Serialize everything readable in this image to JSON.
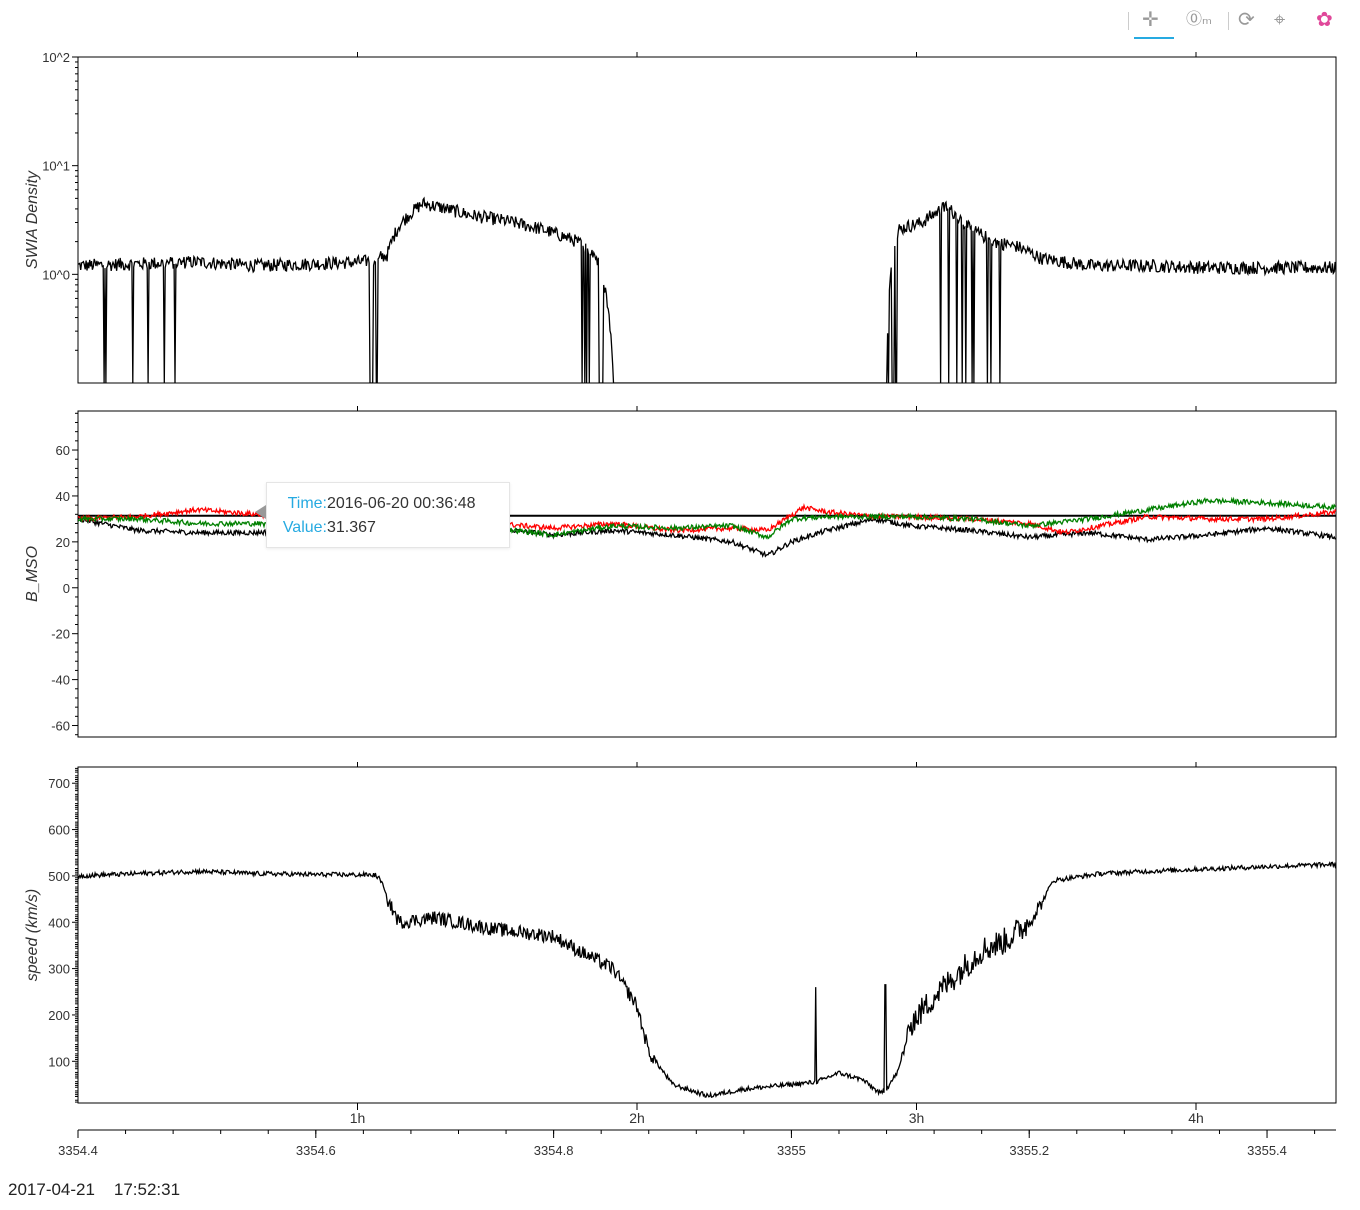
{
  "toolbar": {
    "tools": [
      {
        "name": "pan-tool",
        "glyph": "✛"
      },
      {
        "name": "wheel-zoom-tool",
        "glyph": "⓪ₘ"
      },
      {
        "name": "reset-tool",
        "glyph": "⟳"
      },
      {
        "name": "crosshair-tool",
        "glyph": "⌖"
      },
      {
        "name": "bokeh-logo",
        "glyph": "✿"
      }
    ]
  },
  "tooltip": {
    "time_label": "Time:",
    "time_value": "2016-06-20 00:36:48",
    "value_label": "Value:",
    "value_value": "31.367"
  },
  "footer": {
    "date": "2017-04-21",
    "time": "17:52:31"
  },
  "colors": {
    "line_black": "#000000",
    "line_red": "#ff0000",
    "line_green": "#008000",
    "tooltip_key": "#26aae1"
  },
  "chart_data": [
    {
      "type": "line",
      "panel": "density",
      "ylabel": "SWIA Density",
      "yscale": "log",
      "ylim": [
        0.1,
        100
      ],
      "yticks": [
        1,
        10,
        100
      ],
      "ytick_labels": [
        "10^0",
        "10^1",
        "10^2"
      ],
      "xlim": [
        3354.4,
        3355.458
      ],
      "series": [
        {
          "color": "#000000",
          "x": [
            3354.4,
            3354.45,
            3354.5,
            3354.55,
            3354.6,
            3354.64,
            3354.66,
            3354.67,
            3354.69,
            3354.71,
            3354.73,
            3354.76,
            3354.79,
            3354.82,
            3354.835,
            3354.85,
            3354.89,
            3354.93,
            3354.97,
            3355.01,
            3355.04,
            3355.07,
            3355.08,
            3355.09,
            3355.11,
            3355.13,
            3355.15,
            3355.17,
            3355.19,
            3355.21,
            3355.25,
            3355.3,
            3355.35,
            3355.4,
            3355.458
          ],
          "y": [
            1.2,
            1.25,
            1.3,
            1.2,
            1.25,
            1.3,
            1.5,
            2.8,
            4.5,
            4.0,
            3.5,
            3.1,
            2.6,
            2.0,
            1.5,
            0.1,
            0.1,
            0.1,
            0.1,
            0.1,
            0.1,
            0.1,
            0.1,
            2.6,
            3.0,
            4.2,
            2.6,
            2.0,
            1.8,
            1.4,
            1.2,
            1.2,
            1.15,
            1.15,
            1.15
          ]
        }
      ]
    },
    {
      "type": "line",
      "panel": "bmso",
      "ylabel": "B_MSO",
      "ylim": [
        -65,
        77
      ],
      "yticks": [
        -60,
        -40,
        -20,
        0,
        20,
        40,
        60
      ],
      "xlim": [
        3354.4,
        3355.458
      ],
      "hline": 31.367,
      "series": [
        {
          "color": "#000000",
          "x": [
            3354.4,
            3354.45,
            3354.5,
            3354.55,
            3354.6,
            3354.65,
            3354.7,
            3354.75,
            3354.8,
            3354.85,
            3354.9,
            3354.95,
            3354.98,
            3355.0,
            3355.03,
            3355.07,
            3355.1,
            3355.15,
            3355.2,
            3355.25,
            3355.3,
            3355.35,
            3355.4,
            3355.458
          ],
          "y": [
            30,
            25,
            24,
            24,
            26,
            26,
            25,
            26,
            23,
            25,
            23,
            20,
            14,
            20,
            25,
            30,
            27,
            25,
            22,
            24,
            21,
            23,
            26,
            22
          ]
        },
        {
          "color": "#ff0000",
          "x": [
            3354.4,
            3354.45,
            3354.5,
            3354.55,
            3354.6,
            3354.65,
            3354.7,
            3354.75,
            3354.8,
            3354.85,
            3354.9,
            3354.95,
            3354.98,
            3355.01,
            3355.03,
            3355.07,
            3355.1,
            3355.15,
            3355.2,
            3355.23,
            3355.27,
            3355.3,
            3355.35,
            3355.4,
            3355.458
          ],
          "y": [
            30,
            31,
            34,
            32,
            30,
            29,
            28,
            28,
            26,
            28,
            25,
            26,
            25,
            35,
            33,
            31,
            31,
            30,
            28,
            24,
            28,
            31,
            30,
            30,
            33
          ]
        },
        {
          "color": "#008000",
          "x": [
            3354.4,
            3354.45,
            3354.5,
            3354.55,
            3354.6,
            3354.65,
            3354.7,
            3354.75,
            3354.8,
            3354.85,
            3354.9,
            3354.95,
            3354.98,
            3355.0,
            3355.03,
            3355.07,
            3355.1,
            3355.15,
            3355.2,
            3355.25,
            3355.3,
            3355.35,
            3355.4,
            3355.458
          ],
          "y": [
            30,
            30,
            28,
            28,
            26,
            24,
            25,
            26,
            23,
            27,
            26,
            27,
            22,
            30,
            31,
            31,
            31,
            30,
            27,
            30,
            34,
            38,
            37,
            35
          ]
        }
      ]
    },
    {
      "type": "line",
      "panel": "speed",
      "ylabel": "speed (km/s)",
      "ylim": [
        10,
        735
      ],
      "yticks": [
        100,
        200,
        300,
        400,
        500,
        600,
        700
      ],
      "xlim": [
        3354.4,
        3355.458
      ],
      "series": [
        {
          "color": "#000000",
          "x": [
            3354.4,
            3354.45,
            3354.5,
            3354.55,
            3354.6,
            3354.65,
            3354.655,
            3354.66,
            3354.67,
            3354.7,
            3354.75,
            3354.8,
            3354.82,
            3354.85,
            3354.87,
            3354.88,
            3354.9,
            3354.93,
            3354.96,
            3354.98,
            3355.0,
            3355.02,
            3355.04,
            3355.06,
            3355.075,
            3355.08,
            3355.09,
            3355.1,
            3355.12,
            3355.14,
            3355.16,
            3355.18,
            3355.2,
            3355.21,
            3355.22,
            3355.26,
            3355.3,
            3355.35,
            3355.4,
            3355.458
          ],
          "y": [
            500,
            505,
            510,
            505,
            503,
            502,
            490,
            450,
            400,
            410,
            385,
            370,
            340,
            300,
            220,
            120,
            50,
            25,
            40,
            45,
            50,
            55,
            75,
            60,
            30,
            40,
            80,
            180,
            240,
            290,
            340,
            360,
            400,
            440,
            490,
            505,
            510,
            515,
            520,
            525
          ]
        }
      ]
    },
    {
      "type": "axis",
      "panel": "x-axis",
      "x_ticks": [
        3354.4,
        3354.6,
        3354.8,
        3355.0,
        3355.2,
        3355.4
      ],
      "x_tick_labels": [
        "3354.4",
        "3354.6",
        "3354.8",
        "3355",
        "3355.2",
        "3355.4"
      ],
      "hour_ticks": [
        1,
        2,
        3,
        4
      ],
      "hour_tick_labels": [
        "1h",
        "2h",
        "3h",
        "4h"
      ]
    }
  ]
}
